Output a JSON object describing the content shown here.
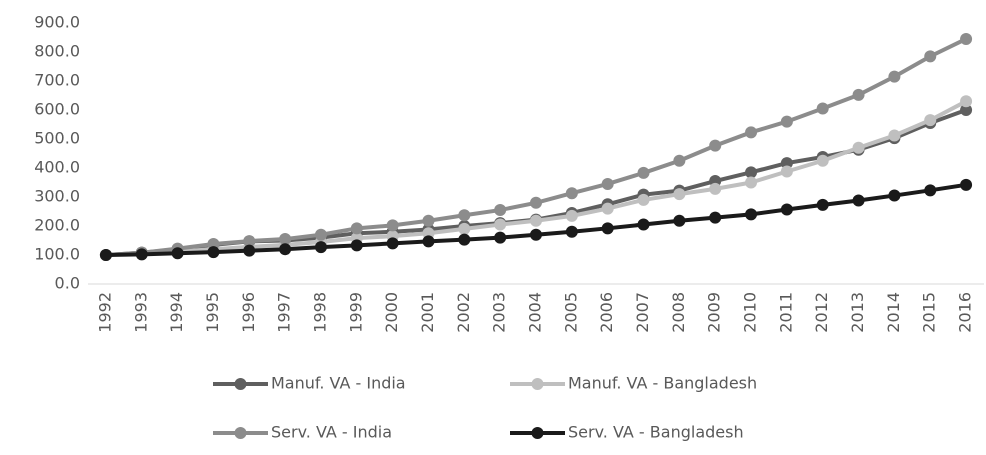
{
  "chart_data": {
    "type": "line",
    "categories": [
      "1992",
      "1993",
      "1994",
      "1995",
      "1996",
      "1997",
      "1998",
      "1999",
      "2000",
      "2001",
      "2002",
      "2003",
      "2004",
      "2005",
      "2006",
      "2007",
      "2008",
      "2009",
      "2010",
      "2011",
      "2012",
      "2013",
      "2014",
      "2015",
      "2016"
    ],
    "series": [
      {
        "name": "Manuf. VA - India",
        "color": "#5f5f5f",
        "values": [
          100,
          108,
          120,
          135,
          147,
          150,
          160,
          175,
          180,
          188,
          200,
          210,
          222,
          245,
          275,
          308,
          322,
          355,
          385,
          417,
          438,
          463,
          503,
          555,
          600
        ]
      },
      {
        "name": "Manuf. VA - Bangladesh",
        "color": "#bfbfbf",
        "values": [
          100,
          105,
          112,
          120,
          128,
          135,
          145,
          158,
          165,
          175,
          190,
          205,
          218,
          235,
          260,
          290,
          310,
          328,
          350,
          388,
          425,
          470,
          512,
          565,
          630
        ]
      },
      {
        "name": "Serv. VA - India",
        "color": "#8c8c8c",
        "values": [
          100,
          108,
          122,
          138,
          148,
          155,
          170,
          192,
          202,
          218,
          237,
          255,
          280,
          313,
          345,
          383,
          425,
          477,
          523,
          560,
          605,
          652,
          715,
          785,
          845
        ]
      },
      {
        "name": "Serv. VA - Bangladesh",
        "color": "#1a1a1a",
        "values": [
          100,
          102,
          106,
          110,
          115,
          120,
          127,
          133,
          140,
          147,
          153,
          160,
          170,
          180,
          192,
          205,
          218,
          229,
          240,
          257,
          273,
          288,
          305,
          323,
          342
        ]
      }
    ],
    "ylim": [
      0,
      900
    ],
    "yticks": [
      {
        "value": 0,
        "label": "0.0"
      },
      {
        "value": 100,
        "label": "100.0"
      },
      {
        "value": 200,
        "label": "200.0"
      },
      {
        "value": 300,
        "label": "300.0"
      },
      {
        "value": 400,
        "label": "400.0"
      },
      {
        "value": 500,
        "label": "500.0"
      },
      {
        "value": 600,
        "label": "600.0"
      },
      {
        "value": 700,
        "label": "700.0"
      },
      {
        "value": 800,
        "label": "800.0"
      },
      {
        "value": 900,
        "label": "900.0"
      }
    ],
    "grid": false
  }
}
